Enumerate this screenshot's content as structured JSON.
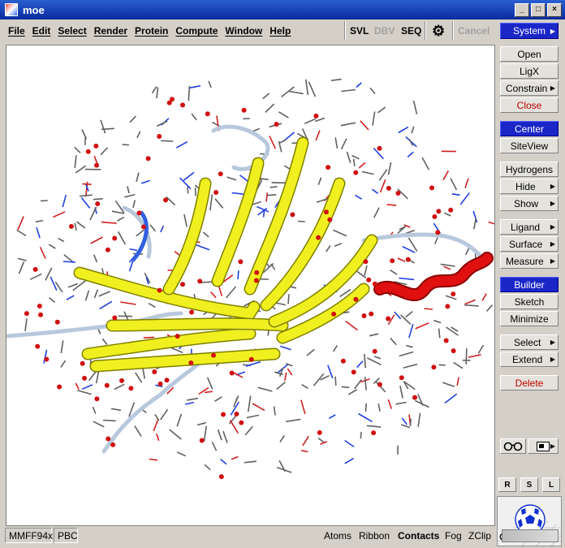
{
  "window": {
    "title": "moe"
  },
  "menu": [
    "File",
    "Edit",
    "Select",
    "Render",
    "Protein",
    "Compute",
    "Window",
    "Help"
  ],
  "toolbar": {
    "svl": "SVL",
    "dbv": "DBV",
    "seq": "SEQ",
    "cancel": "Cancel"
  },
  "sidebar": {
    "system": "System",
    "buttons": [
      "Open",
      "LigX",
      "Constrain",
      "Close",
      "Center",
      "SiteView",
      "Hydrogens",
      "Hide",
      "Show",
      "Ligand",
      "Surface",
      "Measure",
      "Builder",
      "Sketch",
      "Minimize",
      "Select",
      "Extend",
      "Delete"
    ],
    "rsl": [
      "R",
      "S",
      "L"
    ]
  },
  "status": {
    "forcefield": "MMFF94x",
    "pbc": "PBC",
    "toggles": [
      "Atoms",
      "Ribbon",
      "Contacts",
      "Fog",
      "ZClip"
    ]
  },
  "colors": {
    "ribbon_sheet": "#f0f020",
    "ribbon_helix": "#e01010",
    "water_oxygen": "#d01010",
    "accent_blue": "#1b26c8"
  }
}
